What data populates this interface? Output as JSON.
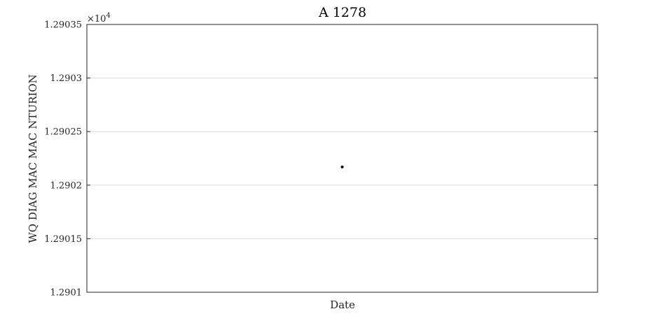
{
  "chart_data": {
    "type": "scatter",
    "title": "A 1278",
    "xlabel": "Date",
    "ylabel": "WQ DIAG MAC MAC NTURION",
    "y_exponent_prefix": "×10",
    "y_exponent": "4",
    "ylim": [
      1.2901,
      1.29035
    ],
    "yticks": [
      "1.2901",
      "1.29015",
      "1.2902",
      "1.29025",
      "1.2903",
      "1.29035"
    ],
    "xticks": [],
    "grid": "horizontal",
    "series": [
      {
        "points": [
          {
            "x": 0.5,
            "y": 1.290217
          }
        ]
      }
    ],
    "colors": {
      "axis": "#262626",
      "grid": "#dcdcdc",
      "marker": "#000000"
    }
  }
}
